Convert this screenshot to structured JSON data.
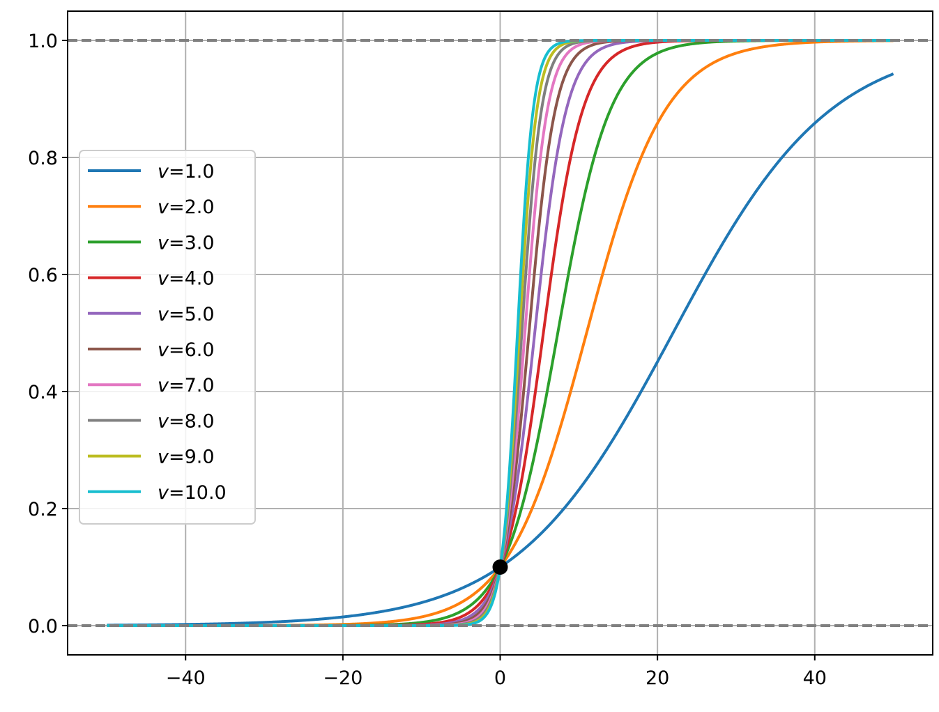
{
  "chart_data": {
    "type": "line",
    "title": "",
    "xlabel": "",
    "ylabel": "",
    "xlim": [
      -55,
      55
    ],
    "ylim": [
      -0.05,
      1.05
    ],
    "xticks": [
      -40,
      -20,
      0,
      20,
      40
    ],
    "xtick_labels": [
      "−40",
      "−20",
      "0",
      "20",
      "40"
    ],
    "yticks": [
      0.0,
      0.2,
      0.4,
      0.6,
      0.8,
      1.0
    ],
    "ytick_labels": [
      "0.0",
      "0.2",
      "0.4",
      "0.6",
      "0.8",
      "1.0"
    ],
    "grid": true,
    "legend_position": "center-left",
    "x_range": [
      -50,
      50
    ],
    "series": [
      {
        "name": "v=1.0",
        "v": 1.0,
        "color": "#1f77b4"
      },
      {
        "name": "v=2.0",
        "v": 2.0,
        "color": "#ff7f0e"
      },
      {
        "name": "v=3.0",
        "v": 3.0,
        "color": "#2ca02c"
      },
      {
        "name": "v=4.0",
        "v": 4.0,
        "color": "#d62728"
      },
      {
        "name": "v=5.0",
        "v": 5.0,
        "color": "#9467bd"
      },
      {
        "name": "v=6.0",
        "v": 6.0,
        "color": "#8c564b"
      },
      {
        "name": "v=7.0",
        "v": 7.0,
        "color": "#e377c2"
      },
      {
        "name": "v=8.0",
        "v": 8.0,
        "color": "#7f7f7f"
      },
      {
        "name": "v=9.0",
        "v": 9.0,
        "color": "#bcbd22"
      },
      {
        "name": "v=10.0",
        "v": 10.0,
        "color": "#17becf"
      }
    ],
    "reference_lines": [
      {
        "y": 0.0,
        "style": "dashed",
        "color": "#808080"
      },
      {
        "y": 1.0,
        "style": "dashed",
        "color": "#808080"
      }
    ],
    "marker_point": {
      "x": 0,
      "y": 0.1,
      "color": "#000000"
    }
  }
}
